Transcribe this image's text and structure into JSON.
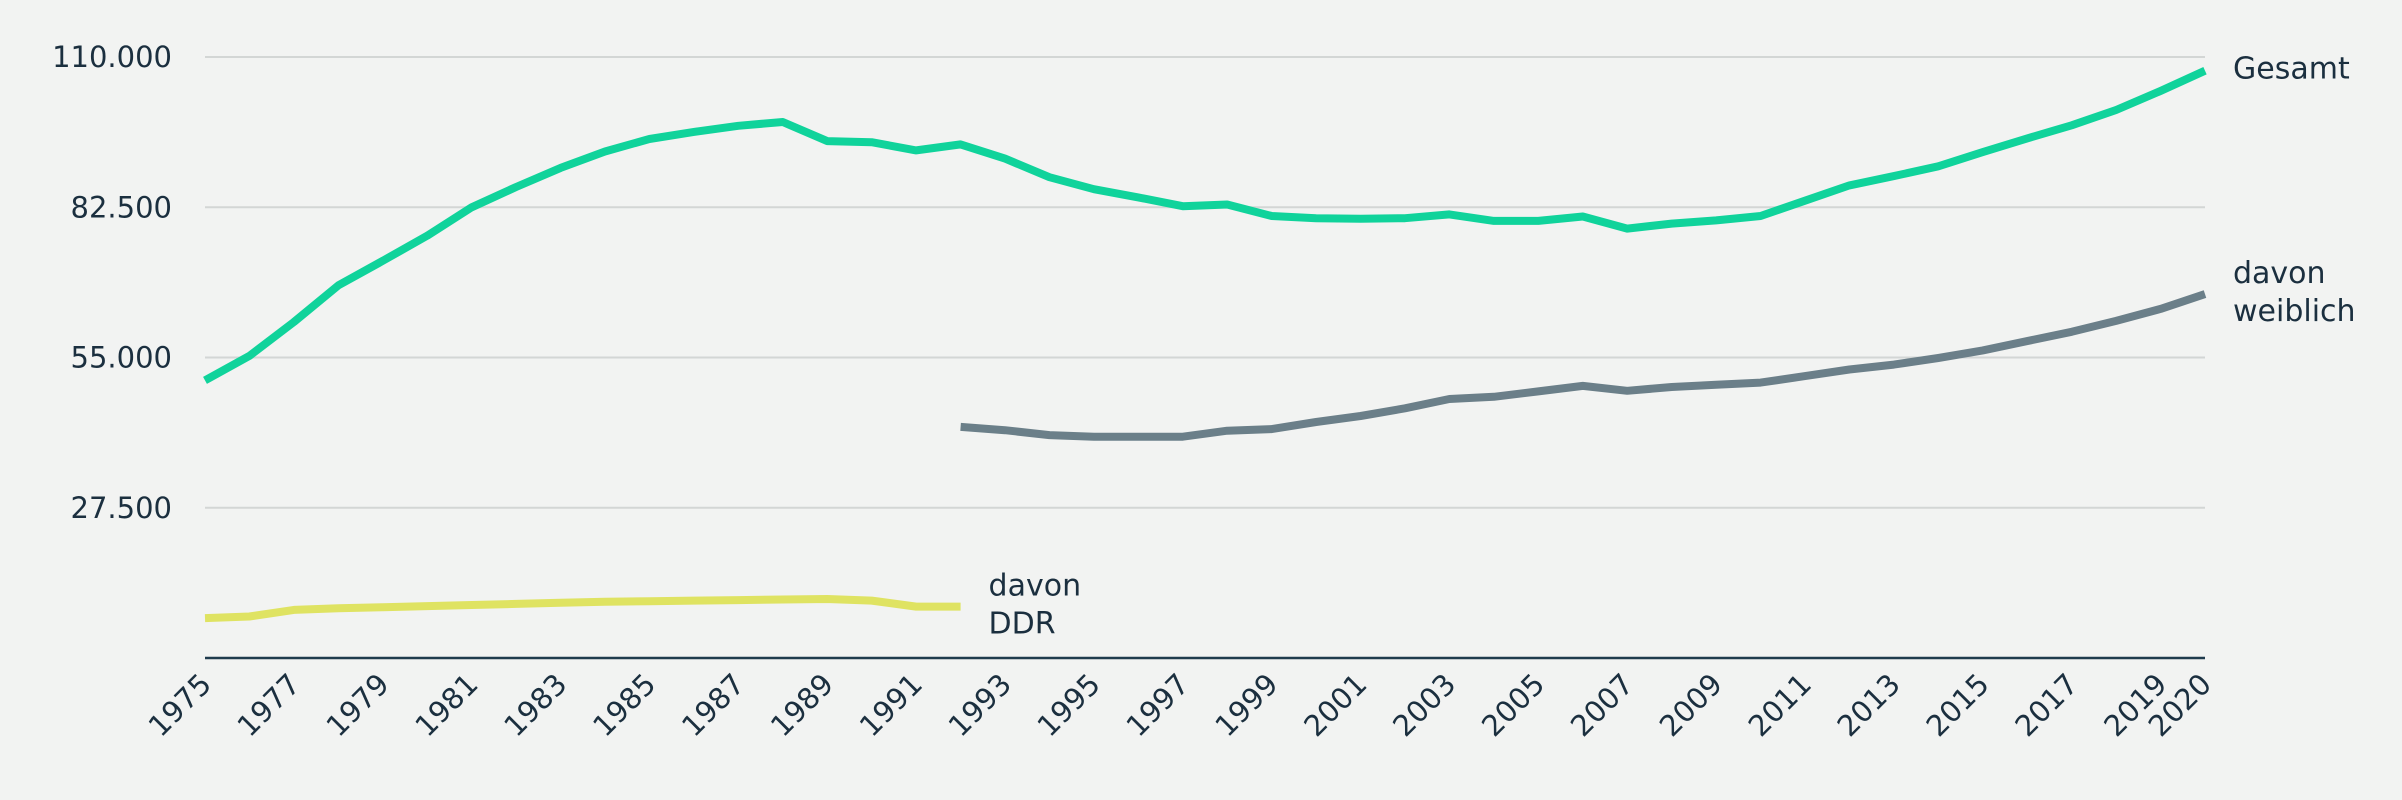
{
  "chart_data": {
    "type": "line",
    "ylim": [
      0,
      110000
    ],
    "yticks": [
      27500,
      55000,
      82500,
      110000
    ],
    "ytick_labels": [
      "27.500",
      "55.000",
      "82.500",
      "110.000"
    ],
    "xlim": [
      1975,
      2020
    ],
    "xticks": [
      1975,
      1977,
      1979,
      1981,
      1983,
      1985,
      1987,
      1989,
      1991,
      1993,
      1995,
      1997,
      1999,
      2001,
      2003,
      2005,
      2007,
      2009,
      2011,
      2013,
      2015,
      2017,
      2019,
      2020
    ],
    "grid": true,
    "series": [
      {
        "name": "Gesamt",
        "label_lines": [
          "Gesamt"
        ],
        "color": "#10d39b",
        "x": [
          1975,
          1976,
          1977,
          1978,
          1979,
          1980,
          1981,
          1982,
          1983,
          1984,
          1985,
          1986,
          1987,
          1988,
          1989,
          1990,
          1991,
          1992,
          1993,
          1994,
          1995,
          1996,
          1997,
          1998,
          1999,
          2000,
          2001,
          2002,
          2003,
          2004,
          2005,
          2006,
          2007,
          2008,
          2009,
          2010,
          2011,
          2012,
          2013,
          2014,
          2015,
          2016,
          2017,
          2018,
          2019,
          2020
        ],
        "y": [
          50800,
          55300,
          61500,
          68200,
          72700,
          77300,
          82500,
          86200,
          89700,
          92700,
          95000,
          96300,
          97400,
          98100,
          94600,
          94400,
          92900,
          94000,
          91400,
          88000,
          85800,
          84300,
          82700,
          83000,
          80900,
          80500,
          80400,
          80500,
          81200,
          80000,
          80000,
          80800,
          78600,
          79500,
          80100,
          80900,
          83700,
          86500,
          88200,
          90000,
          92600,
          95100,
          97500,
          100300,
          103800,
          107500
        ]
      },
      {
        "name": "davon weiblich",
        "label_lines": [
          "davon",
          "weiblich"
        ],
        "color": "#6b7f89",
        "x": [
          1992,
          1993,
          1994,
          1995,
          1996,
          1997,
          1998,
          1999,
          2000,
          2001,
          2002,
          2003,
          2004,
          2005,
          2006,
          2007,
          2008,
          2009,
          2010,
          2011,
          2012,
          2013,
          2014,
          2015,
          2016,
          2017,
          2018,
          2019,
          2020
        ],
        "y": [
          42300,
          41700,
          40800,
          40500,
          40500,
          40500,
          41600,
          41900,
          43200,
          44300,
          45700,
          47400,
          47800,
          48800,
          49800,
          48900,
          49600,
          50000,
          50400,
          51600,
          52800,
          53700,
          54900,
          56300,
          58000,
          59700,
          61700,
          63900,
          66600
        ]
      },
      {
        "name": "davon DDR",
        "label_lines": [
          "davon",
          "DDR"
        ],
        "color": "#dfe362",
        "x": [
          1975,
          1976,
          1977,
          1978,
          1979,
          1980,
          1981,
          1982,
          1983,
          1984,
          1985,
          1986,
          1987,
          1988,
          1989,
          1990,
          1991,
          1992
        ],
        "y": [
          7300,
          7600,
          8800,
          9100,
          9300,
          9500,
          9700,
          9900,
          10100,
          10300,
          10400,
          10500,
          10600,
          10700,
          10800,
          10500,
          9400,
          9400
        ]
      }
    ]
  }
}
